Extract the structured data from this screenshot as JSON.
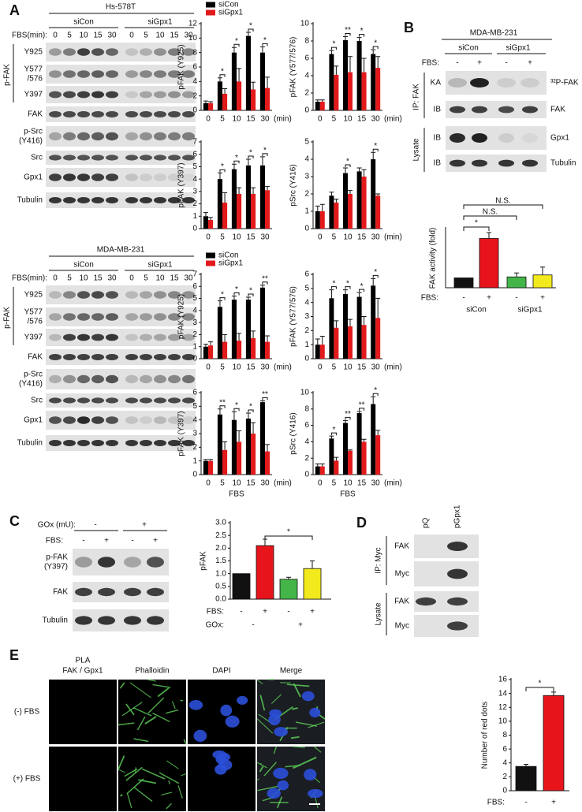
{
  "panel_labels": [
    "A",
    "B",
    "C",
    "D",
    "E"
  ],
  "A": {
    "hs": {
      "cell_line": "Hs-578T",
      "groups": [
        "siCon",
        "siGpx1"
      ],
      "fbs_label": "FBS(min):",
      "times": [
        "0",
        "5",
        "10",
        "15",
        "30"
      ],
      "pfak_label": "p-FAK",
      "rows": [
        [
          "Y925"
        ],
        [
          "Y577",
          "/576"
        ],
        [
          "Y397"
        ],
        [
          "FAK"
        ],
        [
          "p-Src",
          "(Y416)"
        ],
        [
          "Src"
        ],
        [
          "Gpx1"
        ],
        [
          "Tubulin"
        ]
      ]
    },
    "mda": {
      "cell_line": "MDA-MB-231",
      "groups": [
        "siCon",
        "siGpx1"
      ],
      "fbs_label": "FBS(min):",
      "times": [
        "0",
        "5",
        "10",
        "15",
        "30"
      ],
      "pfak_label": "p-FAK",
      "rows": [
        [
          "Y925"
        ],
        [
          "Y577",
          "/576"
        ],
        [
          "Y397"
        ],
        [
          "FAK"
        ],
        [
          "p-Src",
          "(Y416)"
        ],
        [
          "Src"
        ],
        [
          "Gpx1"
        ],
        [
          "Tubulin"
        ]
      ]
    }
  },
  "B": {
    "cell_line": "MDA-MB-231",
    "groups": [
      "siCon",
      "siGpx1"
    ],
    "fbs_label": "FBS:",
    "fbs": [
      "-",
      "+",
      "-",
      "+"
    ],
    "ip_label": "IP: FAK",
    "lysate_label": "Lysate",
    "rows": [
      {
        "left": "KA",
        "right": "³²P-FAK"
      },
      {
        "left": "IB",
        "right": "FAK"
      },
      {
        "left": "IB",
        "right": "Gpx1"
      },
      {
        "left": "IB",
        "right": "Tubulin"
      }
    ]
  },
  "C": {
    "gox_label": "GOx (mU):",
    "gox": [
      "-",
      "+"
    ],
    "fbs_label": "FBS:",
    "fbs": [
      "-",
      "+",
      "-",
      "+"
    ],
    "rows": [
      [
        "p-FAK",
        "(Y397)"
      ],
      [
        "FAK"
      ],
      [
        "Tubulin"
      ]
    ]
  },
  "D": {
    "lanes": [
      "pQ",
      "pGpx1"
    ],
    "ip_label": "IP: Myc",
    "lysate_label": "Lysate",
    "rows": [
      "FAK",
      "Myc",
      "FAK",
      "Myc"
    ]
  },
  "E": {
    "columns": [
      {
        "text": "PLA",
        "color": "#e8141b"
      },
      {
        "text": "FAK / Gpx1",
        "color": "#e8141b"
      },
      {
        "text": "Phalloidin",
        "color": "#2ca02c"
      },
      {
        "text": "DAPI",
        "color": "#1f3fbf"
      },
      {
        "text": "Merge",
        "color": "#111111"
      }
    ],
    "rows": [
      "(-) FBS",
      "(+) FBS"
    ]
  },
  "chart_data": [
    {
      "type": "bar",
      "ylabel": "pFAK (Y925)",
      "categories": [
        "0",
        "5",
        "10",
        "15",
        "30"
      ],
      "x_unit": "(min)",
      "legend": true,
      "series": [
        {
          "name": "siCon",
          "color": "#000000",
          "values": [
            1.0,
            4.0,
            8.0,
            10.3,
            8.0
          ],
          "errors": [
            0.3,
            0.5,
            0.7,
            0.5,
            0.8
          ]
        },
        {
          "name": "siGpx1",
          "color": "#e31a1c",
          "values": [
            1.0,
            2.3,
            4.0,
            2.9,
            3.1
          ],
          "errors": [
            0.2,
            0.7,
            1.8,
            1.0,
            1.5
          ]
        }
      ],
      "ylim": [
        0,
        12
      ],
      "yticks": [
        0,
        2,
        4,
        6,
        8,
        10,
        12
      ],
      "significance": [
        null,
        "*",
        "*",
        "*",
        "*"
      ]
    },
    {
      "type": "bar",
      "ylabel": "pFAK (Y577/576)",
      "categories": [
        "0",
        "5",
        "10",
        "15",
        "30"
      ],
      "x_unit": "(min)",
      "series": [
        {
          "name": "siCon",
          "color": "#000000",
          "values": [
            1.0,
            6.5,
            8.1,
            8.0,
            6.5
          ],
          "errors": [
            0.2,
            0.4,
            0.4,
            0.4,
            0.5
          ]
        },
        {
          "name": "siGpx1",
          "color": "#e31a1c",
          "values": [
            1.0,
            4.1,
            4.4,
            4.4,
            4.9
          ],
          "errors": [
            0.2,
            1.0,
            1.8,
            1.6,
            1.3
          ]
        }
      ],
      "ylim": [
        0,
        10
      ],
      "yticks": [
        0,
        2,
        4,
        6,
        8,
        10
      ],
      "significance": [
        null,
        "*",
        "**",
        "*",
        "*"
      ]
    },
    {
      "type": "bar",
      "ylabel": "pFAK (Y397)",
      "categories": [
        "0",
        "5",
        "10",
        "15",
        "30"
      ],
      "series": [
        {
          "name": "siCon",
          "color": "#000000",
          "values": [
            1.0,
            4.0,
            4.8,
            5.1,
            5.1
          ],
          "errors": [
            0.3,
            0.5,
            0.4,
            0.5,
            0.7
          ]
        },
        {
          "name": "siGpx1",
          "color": "#e31a1c",
          "values": [
            0.7,
            2.1,
            2.8,
            2.8,
            3.1
          ],
          "errors": [
            0.2,
            0.8,
            0.5,
            0.5,
            0.3
          ]
        }
      ],
      "ylim": [
        0,
        7
      ],
      "yticks": [
        0,
        1,
        2,
        3,
        4,
        5,
        6,
        7
      ],
      "significance": [
        null,
        "*",
        "*",
        "*",
        "*"
      ]
    },
    {
      "type": "bar",
      "ylabel": "pSrc (Y416)",
      "categories": [
        "0",
        "5",
        "10",
        "15",
        "30"
      ],
      "x_unit": "(min)",
      "series": [
        {
          "name": "siCon",
          "color": "#000000",
          "values": [
            1.0,
            1.9,
            3.2,
            3.3,
            4.0
          ],
          "errors": [
            0.3,
            0.2,
            0.3,
            0.2,
            0.4
          ]
        },
        {
          "name": "siGpx1",
          "color": "#e31a1c",
          "values": [
            1.0,
            1.5,
            2.0,
            3.0,
            1.9
          ],
          "errors": [
            0.4,
            0.2,
            0.2,
            0.4,
            0.1
          ]
        }
      ],
      "ylim": [
        0,
        5
      ],
      "yticks": [
        0,
        1,
        2,
        3,
        4,
        5
      ],
      "significance": [
        null,
        null,
        "*",
        null,
        "*"
      ]
    },
    {
      "type": "bar",
      "ylabel": "pFAK (Y925)",
      "categories": [
        "0",
        "5",
        "10",
        "15",
        "30"
      ],
      "x_unit": "(min)",
      "legend": true,
      "series": [
        {
          "name": "siCon",
          "color": "#000000",
          "values": [
            1.0,
            4.3,
            4.9,
            4.9,
            5.9
          ],
          "errors": [
            0.2,
            0.5,
            0.3,
            0.2,
            0.2
          ]
        },
        {
          "name": "siGpx1",
          "color": "#e31a1c",
          "values": [
            1.1,
            1.4,
            1.5,
            1.7,
            1.4
          ],
          "errors": [
            0.3,
            0.6,
            0.6,
            0.6,
            0.5
          ]
        }
      ],
      "ylim": [
        0,
        7
      ],
      "yticks": [
        0,
        1,
        2,
        3,
        4,
        5,
        6,
        7
      ],
      "significance": [
        null,
        "*",
        "*",
        "*",
        "**"
      ]
    },
    {
      "type": "bar",
      "ylabel": "pFAK (Y577/576)",
      "categories": [
        "0",
        "5",
        "10",
        "15",
        "30"
      ],
      "x_unit": "(min)",
      "series": [
        {
          "name": "siCon",
          "color": "#000000",
          "values": [
            1.0,
            4.3,
            4.6,
            4.4,
            5.2
          ],
          "errors": [
            0.4,
            0.6,
            0.3,
            0.3,
            0.5
          ]
        },
        {
          "name": "siGpx1",
          "color": "#e31a1c",
          "values": [
            1.0,
            2.2,
            2.3,
            2.4,
            2.9
          ],
          "errors": [
            0.6,
            0.5,
            0.5,
            0.6,
            1.4
          ]
        }
      ],
      "ylim": [
        0,
        6
      ],
      "yticks": [
        0,
        1,
        2,
        3,
        4,
        5,
        6
      ],
      "significance": [
        null,
        "*",
        "*",
        "*",
        "*"
      ]
    },
    {
      "type": "bar",
      "ylabel": "pFAK (Y397)",
      "categories": [
        "0",
        "5",
        "10",
        "15",
        "30"
      ],
      "x_unit": "(min)",
      "xlabel": "FBS",
      "series": [
        {
          "name": "siCon",
          "color": "#000000",
          "values": [
            1.0,
            4.4,
            4.0,
            4.1,
            5.3
          ],
          "errors": [
            0.1,
            0.4,
            0.6,
            0.4,
            0.1
          ]
        },
        {
          "name": "siGpx1",
          "color": "#e31a1c",
          "values": [
            1.0,
            1.8,
            2.4,
            3.0,
            1.7
          ],
          "errors": [
            0.1,
            0.6,
            0.8,
            0.8,
            0.5
          ]
        }
      ],
      "ylim": [
        0,
        6
      ],
      "yticks": [
        0,
        1,
        2,
        3,
        4,
        5,
        6
      ],
      "significance": [
        null,
        "**",
        "*",
        "*",
        "**"
      ]
    },
    {
      "type": "bar",
      "ylabel": "pSrc (Y416)",
      "categories": [
        "0",
        "5",
        "10",
        "15",
        "30"
      ],
      "x_unit": "(min)",
      "xlabel": "FBS",
      "series": [
        {
          "name": "siCon",
          "color": "#000000",
          "values": [
            1.0,
            4.4,
            6.3,
            7.5,
            8.6
          ],
          "errors": [
            0.3,
            0.3,
            0.3,
            0.2,
            0.9
          ]
        },
        {
          "name": "siGpx1",
          "color": "#e31a1c",
          "values": [
            1.0,
            1.7,
            2.9,
            4.0,
            4.8
          ],
          "errors": [
            0.3,
            0.4,
            0.1,
            0.3,
            0.6
          ]
        }
      ],
      "ylim": [
        0,
        10
      ],
      "yticks": [
        0,
        2,
        4,
        6,
        8,
        10
      ],
      "significance": [
        null,
        "*",
        "**",
        "**",
        "*"
      ]
    },
    {
      "type": "bar",
      "ylabel": "FAK activity (fold)",
      "row_label": "FBS:",
      "categories": [
        "-",
        "+",
        "-",
        "+"
      ],
      "groups": [
        "siCon",
        "siGpx1"
      ],
      "values": [
        1.0,
        5.0,
        1.1,
        1.3
      ],
      "errors": [
        null,
        0.6,
        0.4,
        0.8
      ],
      "colors": [
        "#111111",
        "#e8141b",
        "#44b549",
        "#f2ea1c"
      ],
      "ylim": [
        0,
        6
      ],
      "annotations": [
        "*",
        "N.S.",
        "N.S."
      ]
    },
    {
      "type": "bar",
      "ylabel": "pFAK",
      "row_label": "FBS:",
      "categories": [
        "-",
        "+",
        "-",
        "+"
      ],
      "row2_label": "GOx:",
      "groups": [
        "-",
        "+"
      ],
      "values": [
        1.0,
        2.1,
        0.78,
        1.2
      ],
      "errors": [
        null,
        0.25,
        0.08,
        0.3
      ],
      "colors": [
        "#111111",
        "#e8141b",
        "#44b549",
        "#f2ea1c"
      ],
      "ylim": [
        0,
        3
      ],
      "yticks": [
        {
          "value": 0,
          "label": "0.0"
        },
        {
          "value": 0.5,
          "label": "0.5"
        },
        {
          "value": 1,
          "label": "1.0"
        },
        {
          "value": 1.5,
          "label": "1.5"
        },
        {
          "value": 2,
          "label": "2.0"
        },
        {
          "value": 2.5,
          "label": "2.5"
        },
        {
          "value": 3,
          "label": "3.0"
        }
      ],
      "annotations": [
        "*"
      ]
    },
    {
      "type": "bar",
      "ylabel": "Number of red dots",
      "row_label": "FBS:",
      "categories": [
        "-",
        "+"
      ],
      "values": [
        3.5,
        13.7
      ],
      "errors": [
        0.3,
        0.5
      ],
      "colors": [
        "#111111",
        "#e8141b"
      ],
      "ylim": [
        0,
        16
      ],
      "yticks": [
        0,
        2,
        4,
        6,
        8,
        10,
        12,
        14,
        16
      ],
      "annotations": [
        "*"
      ]
    }
  ]
}
